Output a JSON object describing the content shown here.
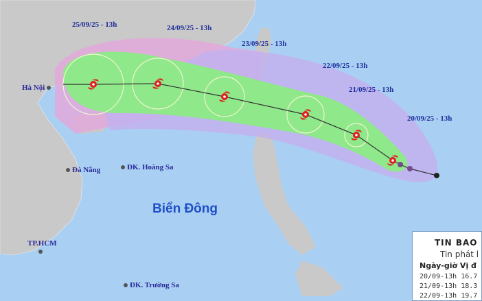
{
  "map": {
    "colors": {
      "sea": "#a9cff3",
      "land": "#c9c9c9",
      "risk_zone": "#e2a9dc",
      "cone": "#c3b2ef",
      "wind_zone": "#8fe88a",
      "track": "#333333",
      "storm_icon": "#e02020"
    },
    "forecast_labels": [
      "25/09/25 - 13h",
      "24/09/25 - 13h",
      "23/09/25 - 13h",
      "22/09/25 - 13h",
      "21/09/25 - 13h",
      "20/09/25 - 13h"
    ],
    "places": {
      "hanoi": "Hà Nội",
      "danang": "Đà Nẵng",
      "hoangsa": "ĐK. Hoàng Sa",
      "tphcm": "TP.HCM",
      "truongsa": "ĐK. Trường Sa"
    },
    "sea_name": "Biển Đông",
    "storm_icon": "typhoon-icon"
  },
  "bulletin": {
    "title": "TIN BAO",
    "subtitle": "Tin phát l",
    "header": "Ngày-giờ Vị đ",
    "rows": [
      "20/09-13h  16.7",
      "21/09-13h  18.3",
      "22/09-13h  19.7"
    ]
  }
}
